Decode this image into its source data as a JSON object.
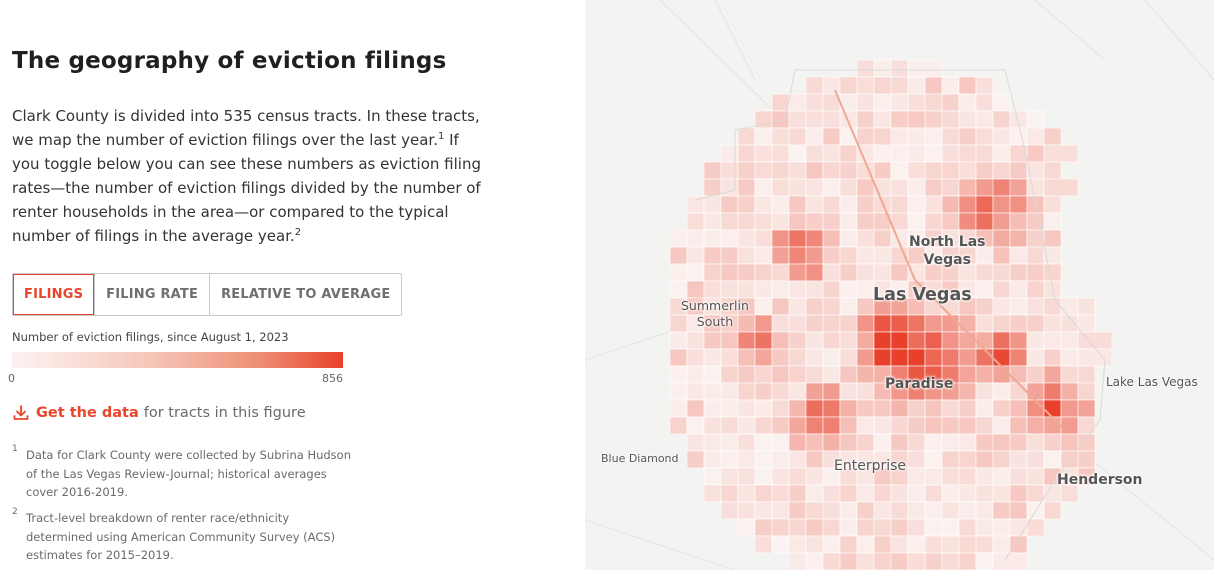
{
  "title": "The geography of eviction filings",
  "intro": {
    "part1": "Clark County is divided into 535 census tracts. In these tracts, we map the number of eviction filings over the last year.",
    "sup1": "1",
    "part2": " If you toggle below you can see these numbers as eviction filing rates—the number of eviction filings divided by the number of renter households in the area—or compared to the typical number of filings in the average year.",
    "sup2": "2"
  },
  "toggle": {
    "filings": "FILINGS",
    "filing_rate": "FILING RATE",
    "relative": "RELATIVE TO AVERAGE",
    "active": "filings"
  },
  "legend": {
    "label": "Number of eviction filings, since August 1, 2023",
    "min": "0",
    "max": "856",
    "color_low": "#fbf3f1",
    "color_high": "#e8402a"
  },
  "get_data": {
    "link": "Get the data",
    "rest": "for tracts in this figure",
    "icon": "download-icon"
  },
  "footnotes": [
    {
      "num": "1",
      "text": "Data for Clark County were collected by Subrina Hudson of the Las Vegas Review-Journal; historical averages cover 2016-2019."
    },
    {
      "num": "2",
      "text": "Tract-level breakdown of renter race/ethnicity determined using American Community Survey (ACS) estimates for 2015–2019."
    }
  ],
  "map": {
    "places": {
      "north_las_vegas": "North Las\nVegas",
      "las_vegas": "Las Vegas",
      "summerlin_south": "Summerlin\nSouth",
      "paradise": "Paradise",
      "lake_las_vegas": "Lake Las Vegas",
      "blue_diamond": "Blue Diamond",
      "enterprise": "Enterprise",
      "henderson": "Henderson"
    },
    "background": "#f3f3f2",
    "accent": "#e8452a"
  }
}
